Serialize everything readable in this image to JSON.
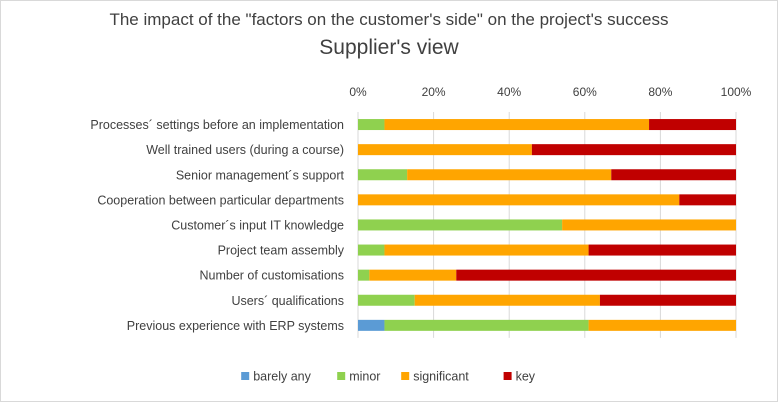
{
  "chart_data": {
    "type": "bar",
    "orientation": "horizontal",
    "stacked": "percent",
    "title": "The impact of the \"factors on the customer's side\" on the project's success",
    "subtitle": "Supplier's view",
    "categories": [
      "Processes´ settings before an implementation",
      "Well trained users (during a course)",
      "Senior management´s support",
      "Cooperation between particular departments",
      "Customer´s input IT knowledge",
      "Project team assembly",
      "Number of customisations",
      "Users´ qualifications",
      "Previous experience with ERP systems"
    ],
    "series": [
      {
        "name": "barely any",
        "color": "#5b9bd5",
        "values": [
          0,
          0,
          0,
          0,
          0,
          0,
          0,
          0,
          7
        ]
      },
      {
        "name": "minor",
        "color": "#8fd14f",
        "values": [
          7,
          0,
          13,
          0,
          54,
          7,
          3,
          15,
          54
        ]
      },
      {
        "name": "significant",
        "color": "#ffa500",
        "values": [
          70,
          46,
          54,
          85,
          46,
          54,
          23,
          49,
          39
        ]
      },
      {
        "name": "key",
        "color": "#c00000",
        "values": [
          23,
          54,
          33,
          15,
          0,
          39,
          74,
          36,
          0
        ]
      }
    ],
    "x_ticks": [
      "0%",
      "20%",
      "40%",
      "60%",
      "80%",
      "100%"
    ],
    "xlim": [
      0,
      100
    ],
    "grid": true,
    "legend_position": "bottom"
  }
}
